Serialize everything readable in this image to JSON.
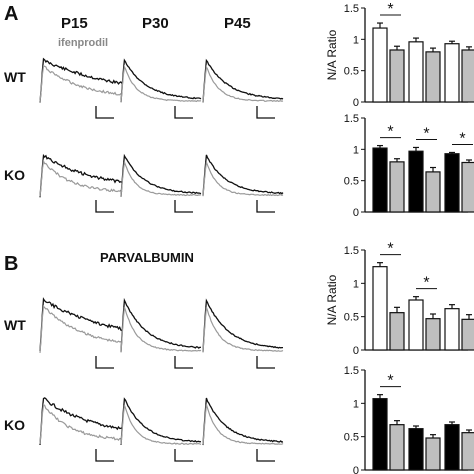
{
  "panels": {
    "a_label": "A",
    "b_label": "B",
    "b_title": "PARVALBUMIN",
    "columns": [
      "P15",
      "P30",
      "P45"
    ],
    "rows": [
      "WT",
      "KO"
    ],
    "drug_label": "ifenprodil"
  },
  "chart_data": [
    {
      "type": "bar",
      "panel": "A",
      "genotype": "WT",
      "categories": [
        "P15",
        "P30",
        "P45"
      ],
      "series": [
        {
          "values": [
            1.18,
            0.96,
            0.93
          ],
          "errors": [
            0.08,
            0.06,
            0.04
          ],
          "fill": "#ffffff"
        },
        {
          "values": [
            0.83,
            0.8,
            0.83
          ],
          "errors": [
            0.06,
            0.06,
            0.05
          ],
          "fill": "#bfbfbf"
        }
      ],
      "ylabel": "N/A Ratio",
      "ylim": [
        0,
        1.5
      ],
      "yticks": [
        "0",
        "0.5",
        "1",
        "1.5"
      ],
      "significance": [
        {
          "category": 0,
          "label": "*"
        }
      ]
    },
    {
      "type": "bar",
      "panel": "A",
      "genotype": "KO",
      "categories": [
        "P15",
        "P30",
        "P45"
      ],
      "series": [
        {
          "values": [
            1.02,
            0.97,
            0.93
          ],
          "errors": [
            0.04,
            0.06,
            0.02
          ],
          "fill": "#000000"
        },
        {
          "values": [
            0.8,
            0.64,
            0.79
          ],
          "errors": [
            0.05,
            0.07,
            0.04
          ],
          "fill": "#bfbfbf"
        }
      ],
      "ylabel": "",
      "ylim": [
        0,
        1.5
      ],
      "yticks": [
        "0",
        "0.5",
        "1",
        "1.5"
      ],
      "significance": [
        {
          "category": 0,
          "label": "*"
        },
        {
          "category": 1,
          "label": "*"
        },
        {
          "category": 2,
          "label": "*"
        }
      ]
    },
    {
      "type": "bar",
      "panel": "B",
      "genotype": "WT",
      "categories": [
        "P15",
        "P30",
        "P45"
      ],
      "series": [
        {
          "values": [
            1.25,
            0.75,
            0.62
          ],
          "errors": [
            0.06,
            0.05,
            0.06
          ],
          "fill": "#ffffff"
        },
        {
          "values": [
            0.56,
            0.47,
            0.46
          ],
          "errors": [
            0.08,
            0.07,
            0.07
          ],
          "fill": "#bfbfbf"
        }
      ],
      "ylabel": "N/A Ratio",
      "ylim": [
        0,
        1.5
      ],
      "yticks": [
        "0",
        "0.5",
        "1",
        "1.5"
      ],
      "significance": [
        {
          "category": 0,
          "label": "*"
        },
        {
          "category": 1,
          "label": "*"
        }
      ]
    },
    {
      "type": "bar",
      "panel": "B",
      "genotype": "KO",
      "categories": [
        "P15",
        "P30",
        "P45"
      ],
      "series": [
        {
          "values": [
            1.07,
            0.62,
            0.68
          ],
          "errors": [
            0.06,
            0.04,
            0.04
          ],
          "fill": "#000000"
        },
        {
          "values": [
            0.68,
            0.48,
            0.56
          ],
          "errors": [
            0.06,
            0.05,
            0.04
          ],
          "fill": "#bfbfbf"
        }
      ],
      "ylabel": "",
      "ylim": [
        0,
        1.5
      ],
      "yticks": [
        "0",
        "0.5",
        "1",
        "1.5"
      ],
      "significance": [
        {
          "category": 0,
          "label": "*"
        }
      ]
    }
  ]
}
